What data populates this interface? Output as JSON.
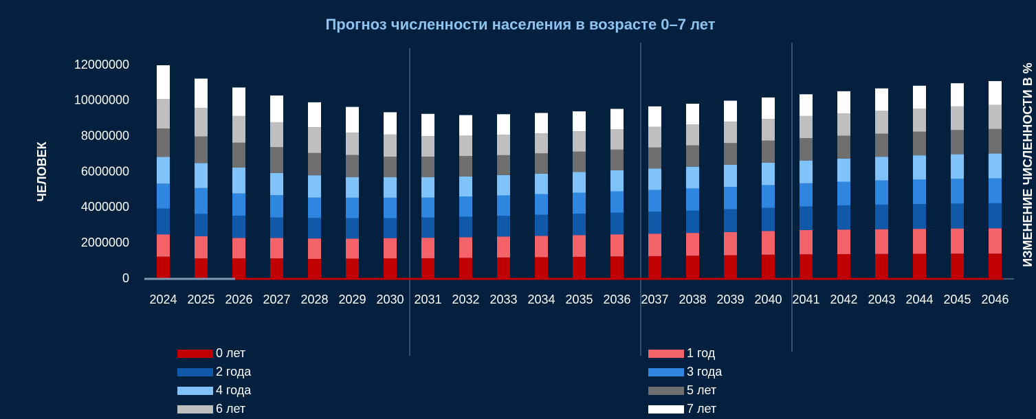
{
  "chart_data": {
    "type": "stacked_bar",
    "title": "Прогноз численности населения в возрасте 0–7 лет",
    "y_label": "ЧЕЛОВЕК",
    "y2_label": "ИЗМЕНЕНИЕ ЧИСЛЕННОСТИ В %",
    "categories": [
      "2024",
      "2025",
      "2026",
      "2027",
      "2028",
      "2029",
      "2030",
      "2031",
      "2032",
      "2033",
      "2034",
      "2035",
      "2036",
      "2037",
      "2038",
      "2039",
      "2040",
      "2041",
      "2042",
      "2043",
      "2044",
      "2045",
      "2046"
    ],
    "ylim": [
      0,
      12000000
    ],
    "yticks": [
      0,
      2000000,
      4000000,
      6000000,
      8000000,
      10000000,
      12000000
    ],
    "legend": "bottom",
    "series": [
      {
        "name": "0 лет",
        "color": "#c00000",
        "values": [
          1250000,
          1150000,
          1150000,
          1150000,
          1120000,
          1140000,
          1150000,
          1160000,
          1180000,
          1200000,
          1220000,
          1240000,
          1260000,
          1280000,
          1300000,
          1330000,
          1360000,
          1380000,
          1390000,
          1400000,
          1410000,
          1420000,
          1420000
        ]
      },
      {
        "name": "1 год",
        "color": "#f4636a",
        "values": [
          1250000,
          1250000,
          1150000,
          1150000,
          1150000,
          1120000,
          1140000,
          1150000,
          1160000,
          1180000,
          1200000,
          1220000,
          1240000,
          1260000,
          1280000,
          1300000,
          1330000,
          1360000,
          1380000,
          1390000,
          1400000,
          1410000,
          1420000
        ]
      },
      {
        "name": "2 года",
        "color": "#0f59a8",
        "values": [
          1450000,
          1250000,
          1250000,
          1150000,
          1150000,
          1150000,
          1120000,
          1140000,
          1150000,
          1160000,
          1180000,
          1200000,
          1220000,
          1240000,
          1260000,
          1280000,
          1300000,
          1330000,
          1360000,
          1380000,
          1390000,
          1400000,
          1410000
        ]
      },
      {
        "name": "3 года",
        "color": "#2e86e0",
        "values": [
          1400000,
          1450000,
          1250000,
          1250000,
          1150000,
          1150000,
          1150000,
          1120000,
          1140000,
          1150000,
          1160000,
          1180000,
          1200000,
          1220000,
          1240000,
          1260000,
          1280000,
          1300000,
          1330000,
          1360000,
          1380000,
          1390000,
          1400000
        ]
      },
      {
        "name": "4 года",
        "color": "#7fc3fa",
        "values": [
          1500000,
          1400000,
          1450000,
          1250000,
          1250000,
          1150000,
          1150000,
          1150000,
          1120000,
          1140000,
          1150000,
          1160000,
          1180000,
          1200000,
          1220000,
          1240000,
          1260000,
          1280000,
          1300000,
          1330000,
          1360000,
          1380000,
          1390000
        ]
      },
      {
        "name": "5 лет",
        "color": "#6f6f6f",
        "values": [
          1600000,
          1500000,
          1400000,
          1450000,
          1250000,
          1250000,
          1150000,
          1150000,
          1150000,
          1120000,
          1140000,
          1150000,
          1160000,
          1180000,
          1200000,
          1220000,
          1240000,
          1260000,
          1280000,
          1300000,
          1330000,
          1360000,
          1380000
        ]
      },
      {
        "name": "6 лет",
        "color": "#bfbfbf",
        "values": [
          1650000,
          1600000,
          1500000,
          1400000,
          1450000,
          1250000,
          1250000,
          1150000,
          1150000,
          1150000,
          1120000,
          1140000,
          1150000,
          1160000,
          1180000,
          1200000,
          1220000,
          1240000,
          1260000,
          1280000,
          1300000,
          1330000,
          1360000
        ]
      },
      {
        "name": "7 лет",
        "color": "#ffffff",
        "values": [
          1900000,
          1650000,
          1600000,
          1500000,
          1400000,
          1450000,
          1250000,
          1250000,
          1150000,
          1150000,
          1150000,
          1120000,
          1140000,
          1150000,
          1160000,
          1180000,
          1200000,
          1220000,
          1240000,
          1260000,
          1280000,
          1300000,
          1330000
        ]
      }
    ]
  }
}
